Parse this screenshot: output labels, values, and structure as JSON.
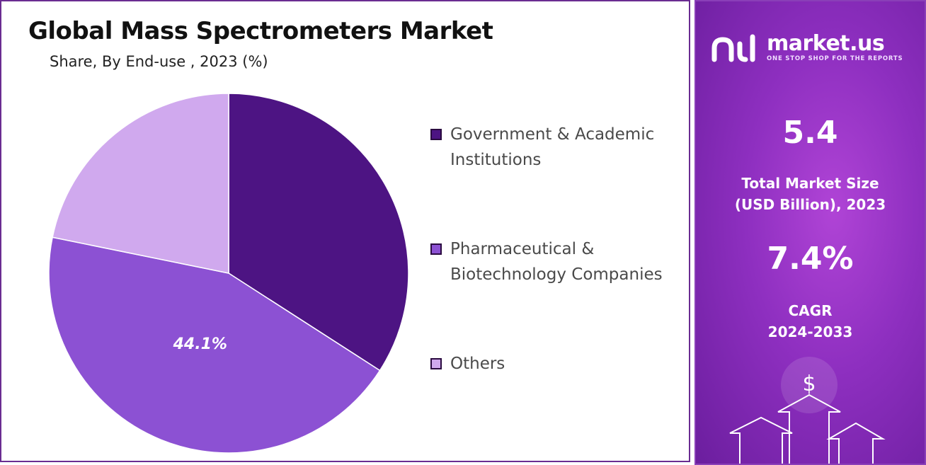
{
  "title": "Global Mass Spectrometers Market",
  "subtitle": "Share, By End-use , 2023 (%)",
  "chart_data": {
    "type": "pie",
    "title": "Global Mass Spectrometers Market",
    "subtitle": "Share, By End-use , 2023 (%)",
    "slices": [
      {
        "label": "Government & Academic Institutions",
        "label_lines": [
          "Government & Academic",
          "Institutions"
        ],
        "value": 34.1,
        "color": "#4d1483",
        "data_label": ""
      },
      {
        "label": "Pharmaceutical & Biotechnology Companies",
        "label_lines": [
          "Pharmaceutical &",
          "Biotechnology Companies"
        ],
        "value": 44.1,
        "color": "#8c51d3",
        "data_label": "44.1%"
      },
      {
        "label": "Others",
        "label_lines": [
          "Others"
        ],
        "value": 21.8,
        "color": "#d0a9ee",
        "data_label": ""
      }
    ],
    "start_angle_deg": 0,
    "direction": "clockwise",
    "legend_position": "right"
  },
  "brand": {
    "name": "market.us",
    "tagline": "ONE STOP SHOP FOR THE REPORTS"
  },
  "stats": {
    "market_size_value": "5.4",
    "market_size_label_1": "Total Market Size",
    "market_size_label_2": "(USD Billion), 2023",
    "cagr_value": "7.4%",
    "cagr_label_1": "CAGR",
    "cagr_label_2": "2024-2033"
  },
  "decoration": {
    "currency_symbol": "$"
  }
}
